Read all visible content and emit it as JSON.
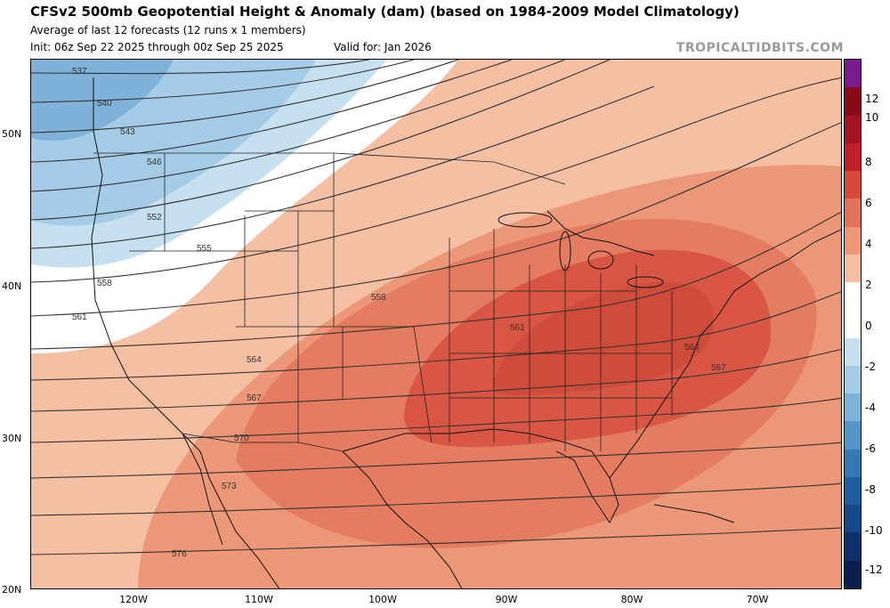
{
  "header": {
    "title": "CFSv2 500mb Geopotential Height & Anomaly (dam) (based on 1984-2009 Model Climatology)",
    "subtitle": "Average of last 12 forecasts (12 runs x 1 members)",
    "init": "Init: 06z Sep 22 2025 through 00z Sep 25 2025",
    "valid": "Valid for: Jan 2026",
    "brand": "TROPICALTIDBITS.COM"
  },
  "axes": {
    "lat_labels": [
      "50N",
      "40N",
      "30N",
      "20N"
    ],
    "lon_labels": [
      "120W",
      "110W",
      "100W",
      "90W",
      "80W",
      "70W"
    ]
  },
  "contour_labels": [
    "537",
    "540",
    "543",
    "546",
    "552",
    "555",
    "558",
    "561",
    "564",
    "567",
    "570",
    "573",
    "576",
    "558",
    "561",
    "564",
    "567"
  ],
  "colorbar": {
    "labels": [
      "12",
      "10",
      "8",
      "6",
      "4",
      "2",
      "0",
      "-2",
      "-4",
      "-6",
      "-8",
      "-10",
      "-12"
    ],
    "colors": [
      "#7a1a8c",
      "#8b0a1a",
      "#a41420",
      "#c0202a",
      "#d64a3c",
      "#e0735a",
      "#ec9878",
      "#f5bfa4",
      "#ffffff",
      "#ffffff",
      "#c6e0f0",
      "#a4cce6",
      "#7fb2d8",
      "#5596c8",
      "#3478b4",
      "#1e5e9e",
      "#144888",
      "#0c306a",
      "#0a1e4e"
    ]
  }
}
